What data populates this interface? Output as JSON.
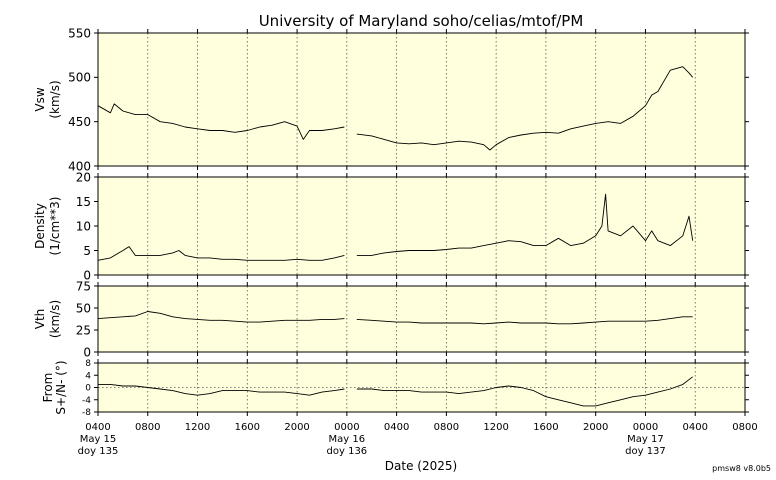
{
  "chart_data": {
    "type": "line",
    "title": "University of Maryland  soho/celias/mtof/PM",
    "xlabel": "Date (2025)",
    "footer": "pmsw8 v8.0b5",
    "x_range_hours": [
      0,
      52
    ],
    "x_ticks": [
      {
        "h": 0,
        "label": "0400"
      },
      {
        "h": 4,
        "label": "0800"
      },
      {
        "h": 8,
        "label": "1200"
      },
      {
        "h": 12,
        "label": "1600"
      },
      {
        "h": 16,
        "label": "2000"
      },
      {
        "h": 20,
        "label": "0000"
      },
      {
        "h": 24,
        "label": "0400"
      },
      {
        "h": 28,
        "label": "0800"
      },
      {
        "h": 32,
        "label": "1200"
      },
      {
        "h": 36,
        "label": "1600"
      },
      {
        "h": 40,
        "label": "2000"
      },
      {
        "h": 44,
        "label": "0000"
      },
      {
        "h": 48,
        "label": "0400"
      },
      {
        "h": 52,
        "label": "0800"
      }
    ],
    "day_labels": [
      {
        "h": 0,
        "date": "May 15",
        "doy": "doy 135"
      },
      {
        "h": 20,
        "date": "May 16",
        "doy": "doy 136"
      },
      {
        "h": 44,
        "date": "May 17",
        "doy": "doy 137"
      }
    ],
    "panels": [
      {
        "id": "vsw",
        "ylabel1": "Vsw",
        "ylabel2": "(km/s)",
        "ylim": [
          400,
          550
        ],
        "yticks": [
          400,
          450,
          500,
          550
        ],
        "series": [
          {
            "x": [
              0,
              1,
              1.3,
              2,
              3,
              4,
              5,
              6,
              7,
              8,
              9,
              10,
              11,
              12,
              13,
              14,
              15,
              16,
              16.5,
              17,
              18,
              19,
              19.8
            ],
            "y": [
              468,
              460,
              470,
              462,
              458,
              458,
              450,
              448,
              444,
              442,
              440,
              440,
              438,
              440,
              444,
              446,
              450,
              445,
              430,
              440,
              440,
              442,
              444
            ]
          },
          {
            "x": [
              20.8,
              22,
              23,
              24,
              25,
              26,
              27,
              28,
              29,
              30,
              31,
              31.5,
              32,
              33,
              34,
              35,
              36,
              37,
              38,
              39,
              40,
              41,
              42,
              43,
              44,
              44.5,
              45,
              46,
              47,
              47.5,
              47.8
            ],
            "y": [
              436,
              434,
              430,
              426,
              425,
              426,
              424,
              426,
              428,
              427,
              424,
              418,
              424,
              432,
              435,
              437,
              438,
              437,
              442,
              445,
              448,
              450,
              448,
              456,
              468,
              480,
              484,
              508,
              512,
              505,
              500
            ]
          }
        ]
      },
      {
        "id": "density",
        "ylabel1": "Density",
        "ylabel2": "(1/cm**3)",
        "ylim": [
          0,
          20
        ],
        "yticks": [
          0,
          5,
          10,
          15,
          20
        ],
        "series": [
          {
            "x": [
              0,
              1,
              2,
              2.5,
              3,
              4,
              5,
              6,
              6.5,
              7,
              8,
              9,
              10,
              11,
              12,
              13,
              14,
              15,
              16,
              17,
              18,
              19,
              19.8
            ],
            "y": [
              3,
              3.5,
              5,
              5.8,
              4,
              4,
              4,
              4.5,
              5,
              4,
              3.5,
              3.5,
              3.2,
              3.2,
              3,
              3,
              3,
              3,
              3.2,
              3,
              3,
              3.5,
              4
            ]
          },
          {
            "x": [
              20.8,
              22,
              23,
              24,
              25,
              26,
              27,
              28,
              29,
              30,
              31,
              32,
              33,
              34,
              35,
              36,
              37,
              38,
              39,
              40,
              40.5,
              40.8,
              41,
              42,
              43,
              44,
              44.5,
              45,
              46,
              47,
              47.5,
              47.8
            ],
            "y": [
              4,
              4,
              4.5,
              4.8,
              5,
              5,
              5,
              5.2,
              5.5,
              5.5,
              6,
              6.5,
              7,
              6.8,
              6,
              6,
              7.5,
              6,
              6.5,
              8,
              10,
              16.5,
              9,
              8,
              10,
              7,
              9,
              7,
              6,
              8,
              12,
              7
            ]
          }
        ]
      },
      {
        "id": "vth",
        "ylabel1": "Vth",
        "ylabel2": "(km/s)",
        "ylim": [
          0,
          75
        ],
        "yticks": [
          0,
          25,
          50,
          75
        ],
        "series": [
          {
            "x": [
              0,
              1,
              2,
              3,
              4,
              5,
              6,
              7,
              8,
              9,
              10,
              11,
              12,
              13,
              14,
              15,
              16,
              17,
              18,
              19,
              19.8
            ],
            "y": [
              38,
              39,
              40,
              41,
              46,
              44,
              40,
              38,
              37,
              36,
              36,
              35,
              34,
              34,
              35,
              36,
              36,
              36,
              37,
              37,
              38
            ]
          },
          {
            "x": [
              20.8,
              22,
              23,
              24,
              25,
              26,
              27,
              28,
              29,
              30,
              31,
              32,
              33,
              34,
              35,
              36,
              37,
              38,
              39,
              40,
              41,
              42,
              43,
              44,
              45,
              46,
              47,
              47.8
            ],
            "y": [
              37,
              36,
              35,
              34,
              34,
              33,
              33,
              33,
              33,
              33,
              32,
              33,
              34,
              33,
              33,
              33,
              32,
              32,
              33,
              34,
              35,
              35,
              35,
              35,
              36,
              38,
              40,
              40
            ]
          }
        ]
      },
      {
        "id": "from",
        "ylabel1": "From",
        "ylabel2": "S+/N- (°)",
        "ylim": [
          -8,
          8
        ],
        "yticks": [
          -8,
          -4,
          0,
          4,
          8
        ],
        "zero_line": true,
        "series": [
          {
            "x": [
              0,
              1,
              2,
              3,
              4,
              5,
              6,
              7,
              8,
              9,
              10,
              11,
              12,
              13,
              14,
              15,
              16,
              17,
              18,
              19,
              19.8
            ],
            "y": [
              1,
              1,
              0.5,
              0.5,
              0,
              -0.5,
              -1,
              -2,
              -2.5,
              -2,
              -1,
              -1,
              -1,
              -1.5,
              -1.5,
              -1.5,
              -2,
              -2.5,
              -1.5,
              -1,
              -0.5
            ]
          },
          {
            "x": [
              20.8,
              22,
              23,
              24,
              25,
              26,
              27,
              28,
              29,
              30,
              31,
              32,
              33,
              34,
              35,
              36,
              37,
              38,
              39,
              40,
              41,
              42,
              43,
              44,
              45,
              46,
              47,
              47.8
            ],
            "y": [
              -0.5,
              -0.5,
              -1,
              -1,
              -1,
              -1.5,
              -1.5,
              -1.5,
              -2,
              -1.5,
              -1,
              0,
              0.5,
              0,
              -1,
              -3,
              -4,
              -5,
              -6,
              -6,
              -5,
              -4,
              -3,
              -2.5,
              -1.5,
              -0.5,
              1,
              3.5
            ]
          }
        ]
      }
    ],
    "colors": {
      "panel_bg": "#ffffdd",
      "line": "#000000",
      "grid": "#555555"
    }
  }
}
